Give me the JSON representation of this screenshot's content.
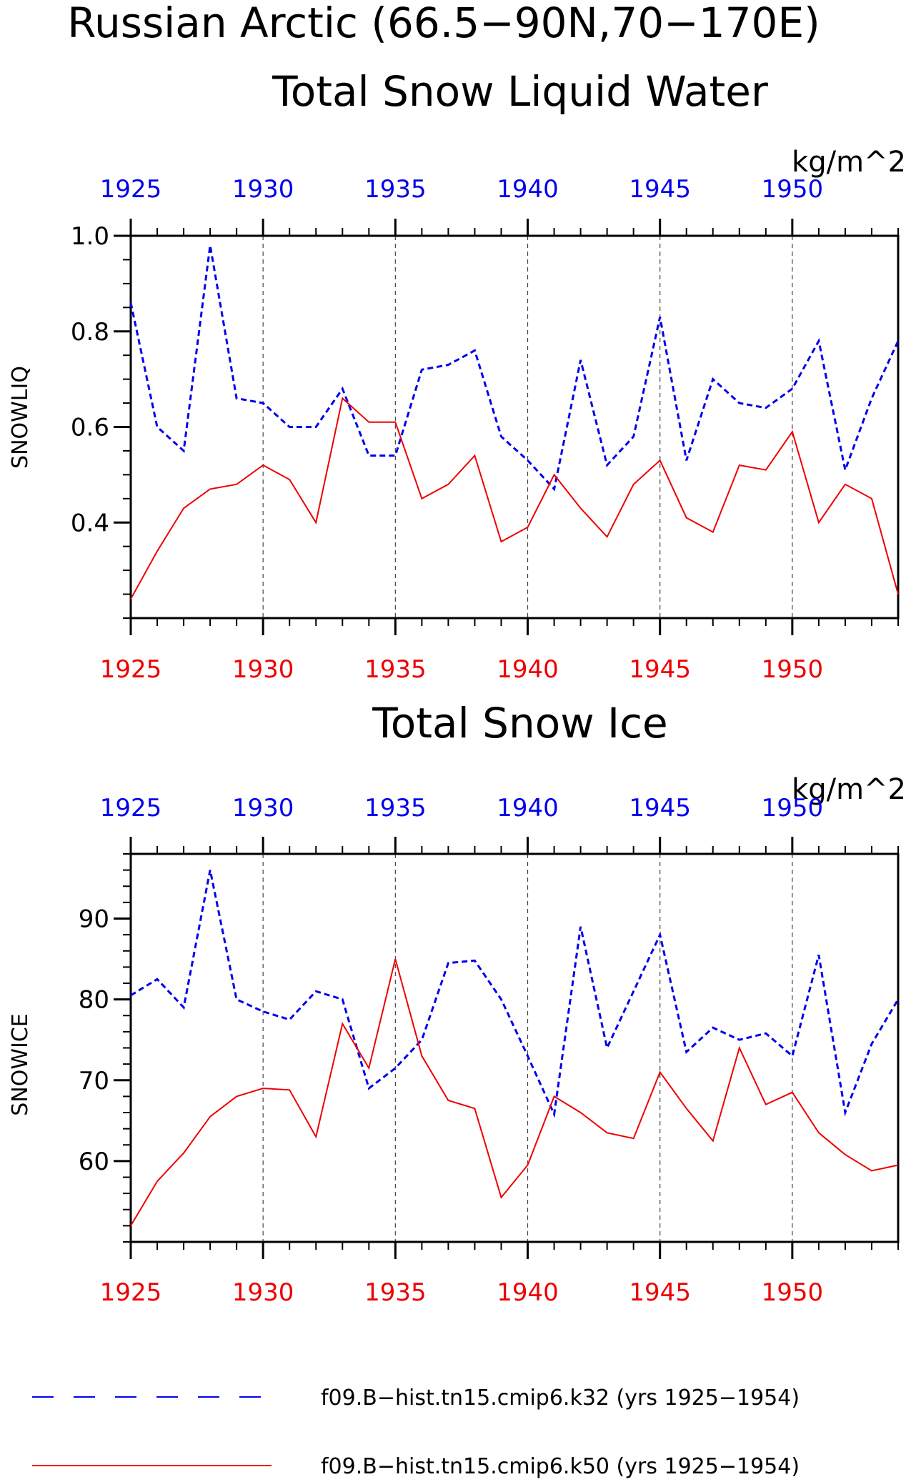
{
  "title_line1": "Russian Arctic (66.5−90N,70−170E)",
  "title_line2": "Total Snow Liquid Water",
  "colors": {
    "series_k32": "#0000ee",
    "series_k50": "#ee0000",
    "axis": "#000000",
    "grid": "#444444"
  },
  "chart_data": [
    {
      "type": "line",
      "title": "Total Snow Liquid Water",
      "ylabel": "SNOWLIQ",
      "units": "kg/m^2",
      "xlim": [
        1925,
        1954
      ],
      "ylim": [
        0.2,
        1.0
      ],
      "yticks": [
        0.4,
        0.6,
        0.8,
        1.0
      ],
      "ytick_labels": [
        "0.4",
        "0.6",
        "0.8",
        "1.0"
      ],
      "yminor_step": 0.05,
      "xticks": [
        1925,
        1930,
        1935,
        1940,
        1945,
        1950
      ],
      "xtick_labels": [
        "1925",
        "1930",
        "1935",
        "1940",
        "1945",
        "1950"
      ],
      "grid": "vertical dashed at major x ticks",
      "x": [
        1925,
        1926,
        1927,
        1928,
        1929,
        1930,
        1931,
        1932,
        1933,
        1934,
        1935,
        1936,
        1937,
        1938,
        1939,
        1940,
        1941,
        1942,
        1943,
        1944,
        1945,
        1946,
        1947,
        1948,
        1949,
        1950,
        1951,
        1952,
        1953,
        1954
      ],
      "series": [
        {
          "values": [
            0.86,
            0.6,
            0.55,
            0.98,
            0.66,
            0.65,
            0.6,
            0.6,
            0.68,
            0.54,
            0.54,
            0.72,
            0.73,
            0.76,
            0.58,
            0.53,
            0.47,
            0.74,
            0.52,
            0.58,
            0.83,
            0.53,
            0.7,
            0.65,
            0.64,
            0.68,
            0.78,
            0.51,
            0.66,
            0.78
          ]
        },
        {
          "values": [
            0.24,
            0.34,
            0.43,
            0.47,
            0.48,
            0.52,
            0.49,
            0.4,
            0.66,
            0.61,
            0.61,
            0.45,
            0.48,
            0.54,
            0.36,
            0.39,
            0.5,
            0.43,
            0.37,
            0.48,
            0.53,
            0.41,
            0.38,
            0.52,
            0.51,
            0.59,
            0.4,
            0.48,
            0.45,
            0.25
          ]
        }
      ]
    },
    {
      "type": "line",
      "title": "Total Snow Ice",
      "ylabel": "SNOWICE",
      "units": "kg/m^2",
      "xlim": [
        1925,
        1954
      ],
      "ylim": [
        50,
        98
      ],
      "yticks": [
        60,
        70,
        80,
        90
      ],
      "ytick_labels": [
        "60",
        "70",
        "80",
        "90"
      ],
      "yminor_step": 2,
      "xticks": [
        1925,
        1930,
        1935,
        1940,
        1945,
        1950
      ],
      "xtick_labels": [
        "1925",
        "1930",
        "1935",
        "1940",
        "1945",
        "1950"
      ],
      "grid": "vertical dashed at major x ticks",
      "x": [
        1925,
        1926,
        1927,
        1928,
        1929,
        1930,
        1931,
        1932,
        1933,
        1934,
        1935,
        1936,
        1937,
        1938,
        1939,
        1940,
        1941,
        1942,
        1943,
        1944,
        1945,
        1946,
        1947,
        1948,
        1949,
        1950,
        1951,
        1952,
        1953,
        1954
      ],
      "series": [
        {
          "values": [
            80.5,
            82.5,
            79.0,
            96.0,
            80.0,
            78.5,
            77.5,
            81.0,
            80.0,
            69.0,
            71.5,
            75.0,
            84.5,
            84.8,
            80.0,
            73.0,
            65.8,
            89.0,
            74.0,
            81.0,
            88.0,
            73.5,
            76.5,
            75.0,
            75.8,
            73.0,
            85.5,
            66.0,
            74.5,
            80.0
          ]
        },
        {
          "values": [
            52.0,
            57.5,
            61.0,
            65.5,
            68.0,
            69.0,
            68.8,
            63.0,
            77.0,
            71.5,
            85.0,
            73.0,
            67.5,
            66.5,
            55.5,
            59.5,
            68.0,
            66.0,
            63.5,
            62.8,
            71.0,
            66.5,
            62.5,
            74.0,
            67.0,
            68.5,
            63.5,
            60.8,
            58.8,
            59.5
          ]
        }
      ]
    }
  ],
  "legend": [
    {
      "label": "f09.B−hist.tn15.cmip6.k32 (yrs 1925−1954)",
      "style": "dashed",
      "color": "#0000ee"
    },
    {
      "label": "f09.B−hist.tn15.cmip6.k50 (yrs 1925−1954)",
      "style": "solid",
      "color": "#ee0000"
    }
  ]
}
